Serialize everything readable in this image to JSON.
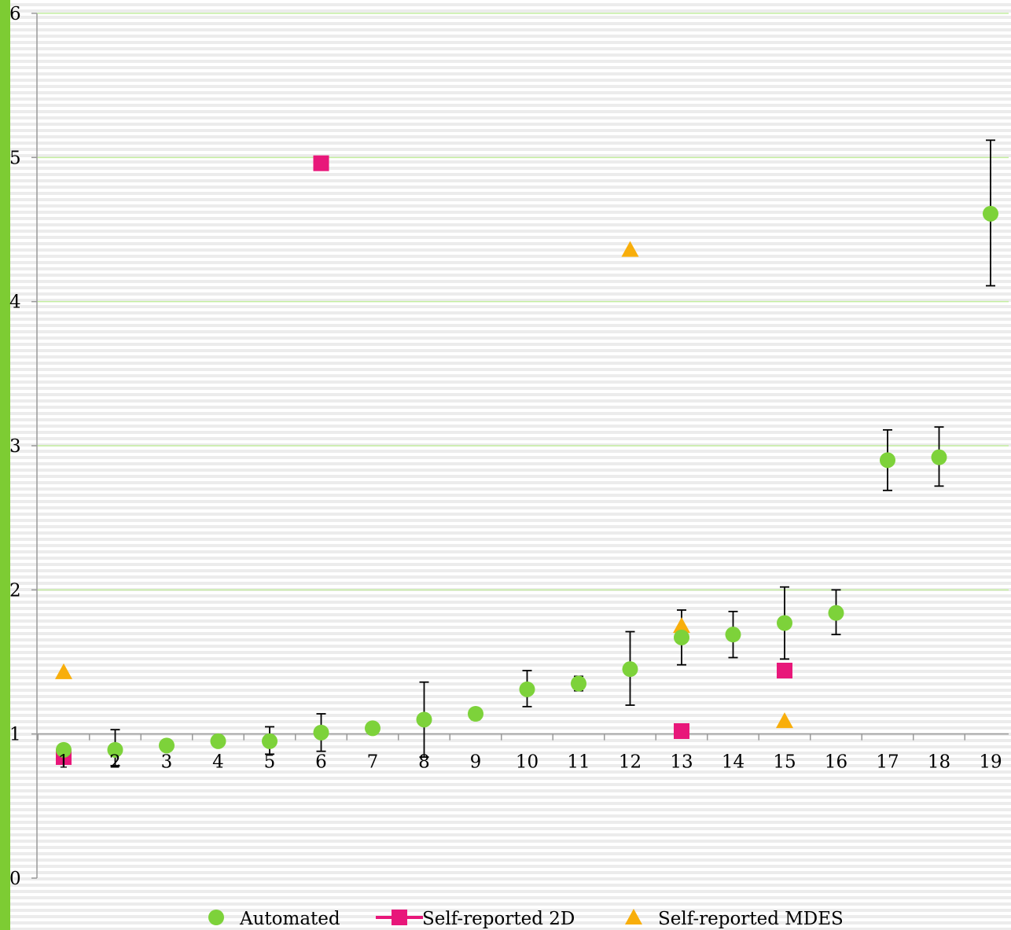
{
  "colors": {
    "background": "#ececec",
    "stripe": "#ffffff",
    "left_bar": "#7dcc33",
    "major_grid": "#c4eea0",
    "axis": "#9a9a9a",
    "automated": "#7dd23a",
    "self_2d": "#e8177a",
    "self_mdes": "#f8ae0b",
    "error_bar": "#000000"
  },
  "chart_data": {
    "type": "scatter",
    "x_categories": [
      "1",
      "2",
      "3",
      "4",
      "5",
      "6",
      "7",
      "8",
      "9",
      "10",
      "11",
      "12",
      "13",
      "14",
      "15",
      "16",
      "17",
      "18",
      "19"
    ],
    "ylim": [
      0,
      6
    ],
    "yticks": [
      "0",
      "1",
      "2",
      "3",
      "4",
      "5",
      "6"
    ],
    "x_axis_crosses_at": 1,
    "grid": "horizontal",
    "legend_position": "bottom",
    "series": [
      {
        "name": "Automated",
        "marker": "circle",
        "points": [
          {
            "x": 1,
            "y": 0.89
          },
          {
            "x": 2,
            "y": 0.89,
            "err_low": 0.78,
            "err_high": 1.03
          },
          {
            "x": 3,
            "y": 0.92
          },
          {
            "x": 4,
            "y": 0.95
          },
          {
            "x": 5,
            "y": 0.95,
            "err_low": 0.86,
            "err_high": 1.05
          },
          {
            "x": 6,
            "y": 1.01,
            "err_low": 0.88,
            "err_high": 1.14
          },
          {
            "x": 7,
            "y": 1.04,
            "err_low": 1.0,
            "err_high": 1.06
          },
          {
            "x": 8,
            "y": 1.1,
            "err_low": 0.84,
            "err_high": 1.36
          },
          {
            "x": 9,
            "y": 1.14,
            "err_low": 1.1,
            "err_high": 1.17
          },
          {
            "x": 10,
            "y": 1.31,
            "err_low": 1.19,
            "err_high": 1.44
          },
          {
            "x": 11,
            "y": 1.35,
            "err_low": 1.3,
            "err_high": 1.4
          },
          {
            "x": 12,
            "y": 1.45,
            "err_low": 1.2,
            "err_high": 1.71
          },
          {
            "x": 13,
            "y": 1.67,
            "err_low": 1.48,
            "err_high": 1.86
          },
          {
            "x": 14,
            "y": 1.69,
            "err_low": 1.53,
            "err_high": 1.85
          },
          {
            "x": 15,
            "y": 1.77,
            "err_low": 1.52,
            "err_high": 2.02
          },
          {
            "x": 16,
            "y": 1.84,
            "err_low": 1.69,
            "err_high": 2.0
          },
          {
            "x": 17,
            "y": 2.9,
            "err_low": 2.69,
            "err_high": 3.11
          },
          {
            "x": 18,
            "y": 2.92,
            "err_low": 2.72,
            "err_high": 3.13
          },
          {
            "x": 19,
            "y": 4.61,
            "err_low": 4.11,
            "err_high": 5.12
          }
        ]
      },
      {
        "name": "Self-reported 2D",
        "marker": "square",
        "points": [
          {
            "x": 1,
            "y": 0.84
          },
          {
            "x": 6,
            "y": 4.96
          },
          {
            "x": 13,
            "y": 1.02
          },
          {
            "x": 15,
            "y": 1.44
          }
        ]
      },
      {
        "name": "Self-reported MDES",
        "marker": "triangle",
        "points": [
          {
            "x": 1,
            "y": 1.43
          },
          {
            "x": 12,
            "y": 4.36
          },
          {
            "x": 13,
            "y": 1.75
          },
          {
            "x": 15,
            "y": 1.09
          }
        ]
      }
    ]
  }
}
